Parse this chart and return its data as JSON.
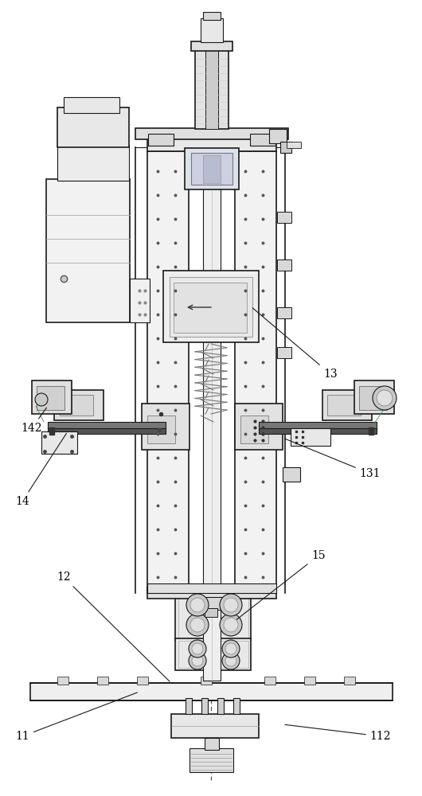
{
  "bg_color": "#ffffff",
  "lc": "#1a1a1a",
  "fig_width": 5.3,
  "fig_height": 10.0,
  "dpi": 100
}
